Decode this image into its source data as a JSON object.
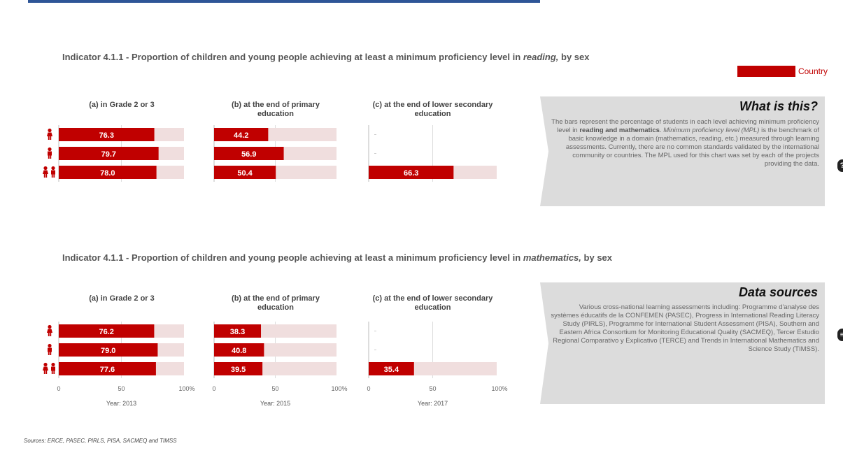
{
  "legend": {
    "label": "Country",
    "color": "#c00000"
  },
  "reading": {
    "title_prefix": "Indicator 4.1.1 - Proportion of children and young people achieving at least a minimum proficiency level in",
    "title_subject": "reading,",
    "title_suffix": "by sex"
  },
  "mathematics": {
    "title_prefix": "Indicator 4.1.1 - Proportion of children and young people achieving at least a minimum proficiency level in",
    "title_subject": "mathematics,",
    "title_suffix": "by sex"
  },
  "panel_titles": {
    "a": "(a) in Grade 2 or 3",
    "b": "(b) at the end of primary education",
    "c": "(c) at the end of lower secondary education"
  },
  "row_icons": [
    "female-icon",
    "male-icon",
    "both-sexes-icon"
  ],
  "axis": {
    "ticks": [
      "0",
      "50",
      "100%"
    ]
  },
  "years": {
    "a": "Year: 2013",
    "b": "Year: 2015",
    "c": "Year: 2017"
  },
  "what_is_this": {
    "heading": "What is this?",
    "p1_start": "The bars represent the percentage of students in each level achieving minimum proficiency level in ",
    "p1_bold": "reading and mathematics",
    "p1_end": ".",
    "p2_italic": "Minimum proficiency level (MPL)",
    "p2_rest": " is the benchmark of basic knowledge in a domain (mathematics, reading, etc.) measured through learning assessments. Currently, there are no common standards validated by the international community or countries. The MPL used for this chart was set by each of the projects providing the data."
  },
  "data_sources": {
    "heading": "Data sources",
    "body": "Various cross-national learning assessments including: Programme d'analyse des systèmes éducatifs de la CONFEMEN (PASEC), Progress in International Reading Literacy Study (PIRLS), Programme for International Student Assessment (PISA), Southern and Eastern Africa Consortium for Monitoring Educational Quality (SACMEQ), Tercer Estudio Regional Comparativo y Explicativo (TERCE) and Trends in International Mathematics and Science Study (TIMSS)."
  },
  "sources_note": "Sources: ERCE, PASEC, PIRLS, PISA, SACMEQ and TIMSS",
  "chart_data": [
    {
      "type": "bar",
      "subject": "reading",
      "panel": "(a) in Grade 2 or 3",
      "categories": [
        "female",
        "male",
        "total"
      ],
      "values": [
        76.3,
        79.7,
        78.0
      ],
      "xlim": [
        0,
        100
      ]
    },
    {
      "type": "bar",
      "subject": "reading",
      "panel": "(b) at the end of primary education",
      "categories": [
        "female",
        "male",
        "total"
      ],
      "values": [
        44.2,
        56.9,
        50.4
      ],
      "xlim": [
        0,
        100
      ]
    },
    {
      "type": "bar",
      "subject": "reading",
      "panel": "(c) at the end of lower secondary education",
      "categories": [
        "female",
        "male",
        "total"
      ],
      "values": [
        null,
        null,
        66.3
      ],
      "xlim": [
        0,
        100
      ]
    },
    {
      "type": "bar",
      "subject": "mathematics",
      "panel": "(a) in Grade 2 or 3",
      "year": "Year: 2013",
      "categories": [
        "female",
        "male",
        "total"
      ],
      "values": [
        76.2,
        79.0,
        77.6
      ],
      "xlim": [
        0,
        100
      ]
    },
    {
      "type": "bar",
      "subject": "mathematics",
      "panel": "(b) at the end of primary education",
      "year": "Year: 2015",
      "categories": [
        "female",
        "male",
        "total"
      ],
      "values": [
        38.3,
        40.8,
        39.5
      ],
      "xlim": [
        0,
        100
      ]
    },
    {
      "type": "bar",
      "subject": "mathematics",
      "panel": "(c) at the end of lower secondary education",
      "year": "Year: 2017",
      "categories": [
        "female",
        "male",
        "total"
      ],
      "values": [
        null,
        null,
        35.4
      ],
      "xlim": [
        0,
        100
      ]
    }
  ]
}
